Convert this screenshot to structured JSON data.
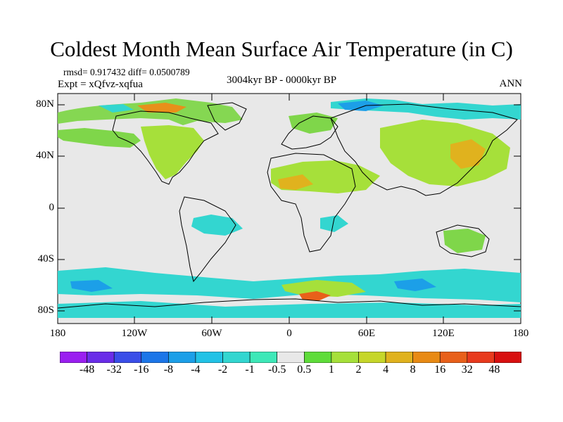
{
  "title": "Coldest Month Mean Surface Air Temperature (in C)",
  "stats_text": "rmsd= 0.917432 diff= 0.0500789",
  "experiment_text": "Expt = xQfvz-xqfua",
  "period_text": "3004kyr BP - 0000kyr BP",
  "season_text": "ANN",
  "lat_labels": [
    "80N",
    "40N",
    "0",
    "40S",
    "80S"
  ],
  "lon_labels": [
    "180",
    "120W",
    "60W",
    "0",
    "60E",
    "120E",
    "180"
  ],
  "colorbar": {
    "labels": [
      "-48",
      "-32",
      "-16",
      "-8",
      "-4",
      "-2",
      "-1",
      "-0.5",
      "0.5",
      "1",
      "2",
      "4",
      "8",
      "16",
      "32",
      "48"
    ],
    "colors": [
      "#9a1ff0",
      "#6a2de8",
      "#3a4ee8",
      "#1c76e8",
      "#1c9fe8",
      "#22c2e6",
      "#33d6d0",
      "#3ee8b8",
      "#e8e8e8",
      "#5fdc3a",
      "#a6e03a",
      "#c6d62a",
      "#e0b21e",
      "#e88a14",
      "#e8601a",
      "#e83a1e",
      "#d81010"
    ]
  },
  "map_background": "#e8e8e8"
}
